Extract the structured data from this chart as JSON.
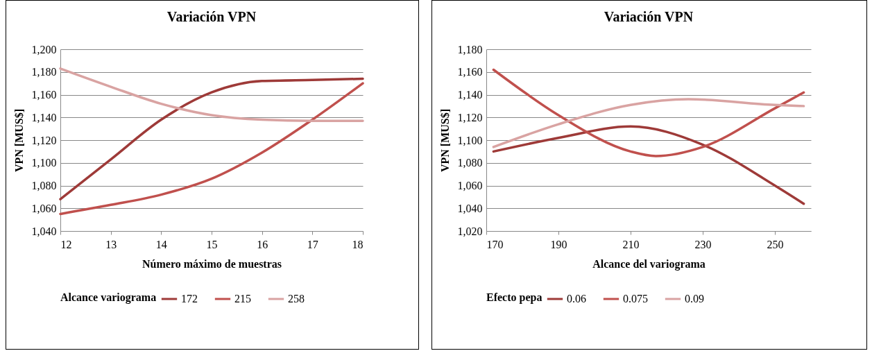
{
  "chart_data": [
    {
      "type": "line",
      "title": "Variación VPN",
      "xlabel": "Número máximo de muestras",
      "ylabel": "VPN [MUS$]",
      "legend_title": "Alcance variograma",
      "x": [
        12,
        13,
        14,
        15,
        16,
        17,
        18
      ],
      "series": [
        {
          "name": "172",
          "color": "#9e3a38",
          "values": [
            1068,
            1103,
            1138,
            1162,
            1172,
            1173,
            1174
          ]
        },
        {
          "name": "215",
          "color": "#c0504d",
          "values": [
            1055,
            1063,
            1072,
            1086,
            1109,
            1138,
            1170
          ]
        },
        {
          "name": "258",
          "color": "#d9a3a2",
          "values": [
            1183,
            1167,
            1152,
            1142,
            1138,
            1137,
            1137
          ]
        }
      ],
      "xlim": [
        12,
        18
      ],
      "xticks": [
        12,
        13,
        14,
        15,
        16,
        17,
        18
      ],
      "ylim": [
        1040,
        1200
      ],
      "yticks": [
        {
          "value": 1040,
          "label": "1,040"
        },
        {
          "value": 1060,
          "label": "1,060"
        },
        {
          "value": 1080,
          "label": "1,080"
        },
        {
          "value": 1100,
          "label": "1,100"
        },
        {
          "value": 1120,
          "label": "1,120"
        },
        {
          "value": 1140,
          "label": "1,140"
        },
        {
          "value": 1160,
          "label": "1,160"
        },
        {
          "value": 1180,
          "label": "1,180"
        },
        {
          "value": 1200,
          "label": "1,200"
        }
      ],
      "grid": "y",
      "legend": "bottom",
      "line_style": "solid"
    },
    {
      "type": "line",
      "title": "Variación VPN",
      "xlabel": "Alcance del variograma",
      "ylabel": "VPN [MUS$]",
      "legend_title": "Efecto pepa",
      "series": [
        {
          "name": "0.06",
          "color": "#9e3a38",
          "x": [
            172,
            190,
            210,
            230,
            250,
            258
          ],
          "values": [
            1090,
            1102,
            1112,
            1096,
            1060,
            1044
          ]
        },
        {
          "name": "0.075",
          "color": "#c0504d",
          "x": [
            172,
            190,
            210,
            217,
            230,
            250,
            258
          ],
          "values": [
            1162,
            1122,
            1090,
            1086,
            1094,
            1128,
            1142
          ]
        },
        {
          "name": "0.09",
          "color": "#d9a3a2",
          "x": [
            172,
            190,
            210,
            226,
            250,
            258
          ],
          "values": [
            1094,
            1114,
            1131,
            1136,
            1131,
            1130
          ]
        }
      ],
      "xlim": [
        170,
        260
      ],
      "xticks": [
        170,
        190,
        210,
        230,
        250
      ],
      "ylim": [
        1020,
        1180
      ],
      "yticks": [
        {
          "value": 1020,
          "label": "1,020"
        },
        {
          "value": 1040,
          "label": "1,040"
        },
        {
          "value": 1060,
          "label": "1,060"
        },
        {
          "value": 1080,
          "label": "1,080"
        },
        {
          "value": 1100,
          "label": "1,100"
        },
        {
          "value": 1120,
          "label": "1,120"
        },
        {
          "value": 1140,
          "label": "1,140"
        },
        {
          "value": 1160,
          "label": "1,160"
        },
        {
          "value": 1180,
          "label": "1,180"
        }
      ],
      "grid": "y",
      "legend": "bottom",
      "line_style": "solid"
    }
  ]
}
